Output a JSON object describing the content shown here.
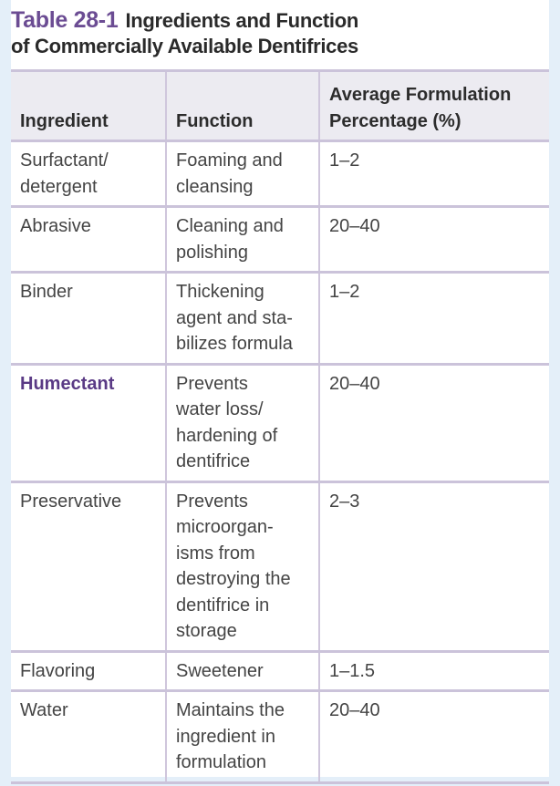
{
  "title": {
    "number": "Table 28-1",
    "text": "Ingredients and Function\nof Commercially Available Dentifrices"
  },
  "colors": {
    "accent": "#6b4c93",
    "background": "#e4eff9",
    "header_bg": "#ecebf1"
  },
  "table": {
    "headers": [
      "Ingredient",
      "Function",
      "Average Formulation\nPercentage (%)"
    ],
    "rows": [
      {
        "ingredient": "Surfactant/\ndetergent",
        "function": "Foaming and\ncleansing",
        "percentage": "1–2"
      },
      {
        "ingredient": "Abrasive",
        "function": "Cleaning and\npolishing",
        "percentage": "20–40"
      },
      {
        "ingredient": "Binder",
        "function": "Thickening\nagent and sta-\nbilizes formula",
        "percentage": "1–2"
      },
      {
        "ingredient": "Humectant",
        "function": "Prevents\nwater loss/\nhardening of\ndentifrice",
        "percentage": "20–40",
        "highlighted": true
      },
      {
        "ingredient": "Preservative",
        "function": "Prevents\nmicroorgan-\nisms from\ndestroying the\ndentifrice in\nstorage",
        "percentage": "2–3"
      },
      {
        "ingredient": "Flavoring",
        "function": "Sweetener",
        "percentage": "1–1.5"
      },
      {
        "ingredient": "Water",
        "function": "Maintains the\ningredient in\nformulation",
        "percentage": "20–40"
      }
    ]
  }
}
